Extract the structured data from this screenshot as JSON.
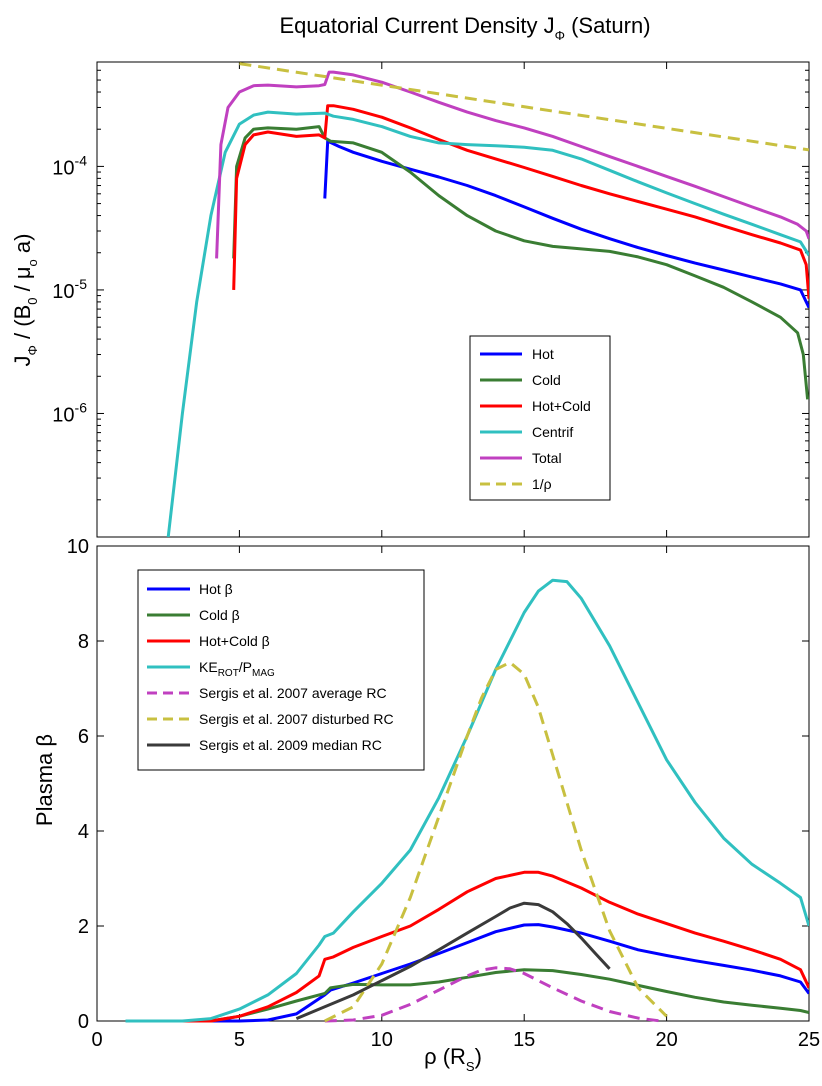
{
  "chart_data": [
    {
      "type": "line",
      "title_main": "Equatorial Current Density J",
      "title_sub": "Φ",
      "title_tail": " (Saturn)",
      "ylabel_parts": [
        "J",
        "Φ",
        " / (B",
        "0",
        " / μ",
        "o",
        " a)"
      ],
      "yscale": "log",
      "ylim": [
        1e-07,
        0.0007
      ],
      "xlim": [
        0,
        25
      ],
      "yticks": [
        {
          "v": 0.0001,
          "base": "10",
          "exp": "-4"
        },
        {
          "v": 1e-05,
          "base": "10",
          "exp": "-5"
        },
        {
          "v": 1e-06,
          "base": "10",
          "exp": "-6"
        }
      ],
      "series": [
        {
          "name": "Hot",
          "label": "Hot",
          "color": "#0000ff",
          "dash": false,
          "x": [
            8.0,
            8.1,
            8.5,
            9,
            10,
            11,
            12,
            13,
            14,
            15,
            16,
            17,
            18,
            19,
            20,
            21,
            22,
            23,
            24,
            24.7,
            24.9,
            25
          ],
          "y": [
            5.5e-05,
            0.00016,
            0.000145,
            0.00013,
            0.00011,
            9.5e-05,
            8.2e-05,
            7e-05,
            5.8e-05,
            4.7e-05,
            3.8e-05,
            3.1e-05,
            2.6e-05,
            2.2e-05,
            1.9e-05,
            1.65e-05,
            1.45e-05,
            1.27e-05,
            1.12e-05,
            1e-05,
            8e-06,
            7.2e-06
          ]
        },
        {
          "name": "Cold",
          "label": "Cold",
          "color": "#3a7d33",
          "dash": false,
          "x": [
            4.8,
            4.9,
            5.2,
            5.5,
            6,
            7,
            7.8,
            8.0,
            8.2,
            9,
            10,
            11,
            12,
            13,
            14,
            15,
            16,
            17,
            18,
            19,
            20,
            21,
            22,
            23,
            24,
            24.6,
            24.8,
            24.95
          ],
          "y": [
            1.8e-05,
            0.0001,
            0.00017,
            0.0002,
            0.000205,
            0.0002,
            0.00021,
            0.00017,
            0.00016,
            0.000155,
            0.00013,
            9e-05,
            5.8e-05,
            4e-05,
            3e-05,
            2.5e-05,
            2.25e-05,
            2.15e-05,
            2.05e-05,
            1.85e-05,
            1.6e-05,
            1.3e-05,
            1.05e-05,
            8e-06,
            6e-06,
            4.5e-06,
            3e-06,
            1.3e-06
          ]
        },
        {
          "name": "Hot+Cold",
          "label": "Hot+Cold",
          "color": "#ff0000",
          "dash": false,
          "x": [
            4.8,
            4.9,
            5.2,
            5.5,
            6,
            7,
            7.8,
            8.0,
            8.1,
            8.3,
            9,
            10,
            11,
            12,
            13,
            14,
            15,
            16,
            17,
            18,
            19,
            20,
            21,
            22,
            23,
            24,
            24.7,
            24.9,
            25
          ],
          "y": [
            1e-05,
            8e-05,
            0.00015,
            0.00018,
            0.00019,
            0.000175,
            0.00018,
            0.00017,
            0.00031,
            0.00031,
            0.00029,
            0.00025,
            0.000205,
            0.000165,
            0.000135,
            0.000115,
            9.8e-05,
            8.3e-05,
            7e-05,
            6e-05,
            5.2e-05,
            4.5e-05,
            3.9e-05,
            3.3e-05,
            2.8e-05,
            2.4e-05,
            2.1e-05,
            1.6e-05,
            8.5e-06
          ]
        },
        {
          "name": "Centrif",
          "label": "Centrif",
          "color": "#30c0c0",
          "dash": false,
          "x": [
            2.5,
            3.0,
            3.5,
            4.0,
            4.5,
            5.0,
            5.5,
            6.0,
            7.0,
            8.0,
            8.3,
            9,
            10,
            11,
            12,
            13,
            14,
            15,
            16,
            17,
            18,
            19,
            20,
            21,
            22,
            23,
            24,
            24.7,
            25
          ],
          "y": [
            1e-07,
            1e-06,
            8e-06,
            4e-05,
            0.00013,
            0.00022,
            0.00026,
            0.000275,
            0.000265,
            0.00027,
            0.000255,
            0.00024,
            0.00021,
            0.000175,
            0.000155,
            0.00015,
            0.000147,
            0.000143,
            0.000135,
            0.000115,
            9.3e-05,
            7.5e-05,
            6.1e-05,
            5e-05,
            4.1e-05,
            3.4e-05,
            2.8e-05,
            2.45e-05,
            1.9e-05
          ]
        },
        {
          "name": "Total",
          "label": "Total",
          "color": "#c040c0",
          "dash": false,
          "x": [
            4.2,
            4.35,
            4.6,
            5.0,
            5.5,
            6.0,
            7.0,
            7.8,
            8.0,
            8.15,
            8.3,
            9,
            10,
            11,
            12,
            13,
            14,
            15,
            16,
            17,
            18,
            19,
            20,
            21,
            22,
            23,
            24,
            24.6,
            24.9,
            25
          ],
          "y": [
            1.8e-05,
            0.00015,
            0.0003,
            0.0004,
            0.00045,
            0.000455,
            0.00044,
            0.00045,
            0.00046,
            0.00058,
            0.00058,
            0.00055,
            0.00048,
            0.0004,
            0.00033,
            0.000275,
            0.000235,
            0.000205,
            0.000175,
            0.000145,
            0.00012,
            0.0001,
            8.3e-05,
            6.9e-05,
            5.7e-05,
            4.7e-05,
            3.9e-05,
            3.4e-05,
            3e-05,
            2.6e-05
          ]
        },
        {
          "name": "1/rho",
          "label": "1/ρ",
          "color": "#c8c040",
          "dash": true,
          "x": [
            5.0,
            25.0
          ],
          "y": [
            0.00068,
            0.000136
          ]
        }
      ]
    },
    {
      "type": "line",
      "ylabel": "Plasma β",
      "xlabel_main": "ρ (R",
      "xlabel_sub": "S",
      "xlabel_tail": ")",
      "xlim": [
        0,
        25
      ],
      "ylim": [
        0,
        10
      ],
      "xticks": [
        0,
        5,
        10,
        15,
        20,
        25
      ],
      "yticks": [
        0,
        2,
        4,
        6,
        8,
        10
      ],
      "series": [
        {
          "name": "Hot β",
          "label": "Hot β",
          "label_sub": "",
          "label_tail": "",
          "color": "#0000ff",
          "dash": false,
          "x": [
            1,
            4,
            5,
            6,
            7,
            7.5,
            8.0,
            8.2,
            9,
            10,
            11,
            12,
            13,
            14,
            15,
            15.5,
            16,
            17,
            18,
            19,
            20,
            21,
            22,
            23,
            24,
            24.7,
            25
          ],
          "y": [
            0,
            0,
            0,
            0.02,
            0.15,
            0.35,
            0.55,
            0.65,
            0.8,
            1.0,
            1.2,
            1.42,
            1.65,
            1.88,
            2.02,
            2.03,
            1.98,
            1.85,
            1.68,
            1.5,
            1.38,
            1.27,
            1.17,
            1.07,
            0.95,
            0.82,
            0.58
          ]
        },
        {
          "name": "Cold β",
          "label": "Cold β",
          "label_sub": "",
          "label_tail": "",
          "color": "#3a7d33",
          "dash": false,
          "x": [
            1,
            4,
            5,
            6,
            7,
            7.8,
            8.0,
            8.2,
            9,
            10,
            11,
            12,
            13,
            14,
            15,
            16,
            17,
            18,
            19,
            20,
            21,
            22,
            23,
            24,
            24.7,
            25
          ],
          "y": [
            0,
            0,
            0.1,
            0.25,
            0.42,
            0.55,
            0.58,
            0.7,
            0.77,
            0.76,
            0.76,
            0.82,
            0.92,
            1.02,
            1.08,
            1.06,
            0.98,
            0.88,
            0.75,
            0.62,
            0.5,
            0.4,
            0.33,
            0.27,
            0.22,
            0.18
          ]
        },
        {
          "name": "Hot+Cold β",
          "label": "Hot+Cold β",
          "label_sub": "",
          "label_tail": "",
          "color": "#ff0000",
          "dash": false,
          "x": [
            1,
            4,
            5,
            6,
            7,
            7.8,
            8.0,
            8.3,
            9,
            10,
            11,
            12,
            13,
            14,
            15,
            15.5,
            16,
            17,
            18,
            19,
            20,
            21,
            22,
            23,
            24,
            24.7,
            25
          ],
          "y": [
            0,
            0,
            0.1,
            0.3,
            0.6,
            0.95,
            1.3,
            1.35,
            1.55,
            1.78,
            2.0,
            2.35,
            2.72,
            3.0,
            3.13,
            3.13,
            3.05,
            2.8,
            2.5,
            2.25,
            2.05,
            1.85,
            1.68,
            1.5,
            1.3,
            1.08,
            0.7
          ]
        },
        {
          "name": "KE_ROT/P_MAG",
          "label": "KE",
          "label_sub": "ROT",
          "label_tail": "/P",
          "label_sub2": "MAG",
          "color": "#30c0c0",
          "dash": false,
          "x": [
            1,
            3,
            4,
            5,
            6,
            7,
            7.8,
            8.0,
            8.3,
            9,
            10,
            11,
            12,
            13,
            14,
            15,
            15.5,
            16,
            16.5,
            17,
            18,
            19,
            20,
            21,
            22,
            23,
            24,
            24.7,
            25
          ],
          "y": [
            0,
            0,
            0.05,
            0.25,
            0.55,
            1.0,
            1.6,
            1.78,
            1.85,
            2.3,
            2.9,
            3.6,
            4.7,
            6.0,
            7.4,
            8.6,
            9.05,
            9.28,
            9.25,
            8.9,
            7.9,
            6.7,
            5.5,
            4.6,
            3.85,
            3.3,
            2.9,
            2.6,
            2.0
          ]
        },
        {
          "name": "Sergis et al. 2007 average RC",
          "label": "Sergis et al. 2007 average RC",
          "label_sub": "",
          "label_tail": "",
          "color": "#c040c0",
          "dash": true,
          "x": [
            8,
            9,
            10,
            11,
            12,
            13,
            13.5,
            14,
            14.5,
            15,
            16,
            17,
            18,
            19,
            19.8
          ],
          "y": [
            0.0,
            0.02,
            0.12,
            0.35,
            0.65,
            0.95,
            1.07,
            1.12,
            1.1,
            1.0,
            0.7,
            0.42,
            0.2,
            0.06,
            0.0
          ]
        },
        {
          "name": "Sergis et al. 2007 disturbed RC",
          "label": "Sergis et al. 2007 disturbed RC",
          "label_sub": "",
          "label_tail": "",
          "color": "#c8c040",
          "dash": true,
          "x": [
            8,
            9,
            10,
            11,
            12,
            13,
            13.5,
            14,
            14.5,
            15,
            15.5,
            16,
            17,
            18,
            19,
            20
          ],
          "y": [
            0.0,
            0.3,
            1.2,
            2.6,
            4.3,
            6.0,
            6.8,
            7.4,
            7.55,
            7.3,
            6.6,
            5.6,
            3.6,
            1.9,
            0.7,
            0.1
          ]
        },
        {
          "name": "Sergis et al. 2009 median RC",
          "label": "Sergis et al. 2009 median RC",
          "label_sub": "",
          "label_tail": "",
          "color": "#3a3a3a",
          "dash": false,
          "x": [
            7,
            8,
            9,
            10,
            11,
            12,
            13,
            14,
            14.5,
            15,
            15.5,
            16,
            16.5,
            17,
            17.5,
            18
          ],
          "y": [
            0.05,
            0.3,
            0.55,
            0.85,
            1.15,
            1.5,
            1.85,
            2.2,
            2.38,
            2.48,
            2.45,
            2.3,
            2.05,
            1.75,
            1.42,
            1.1
          ]
        }
      ]
    }
  ]
}
